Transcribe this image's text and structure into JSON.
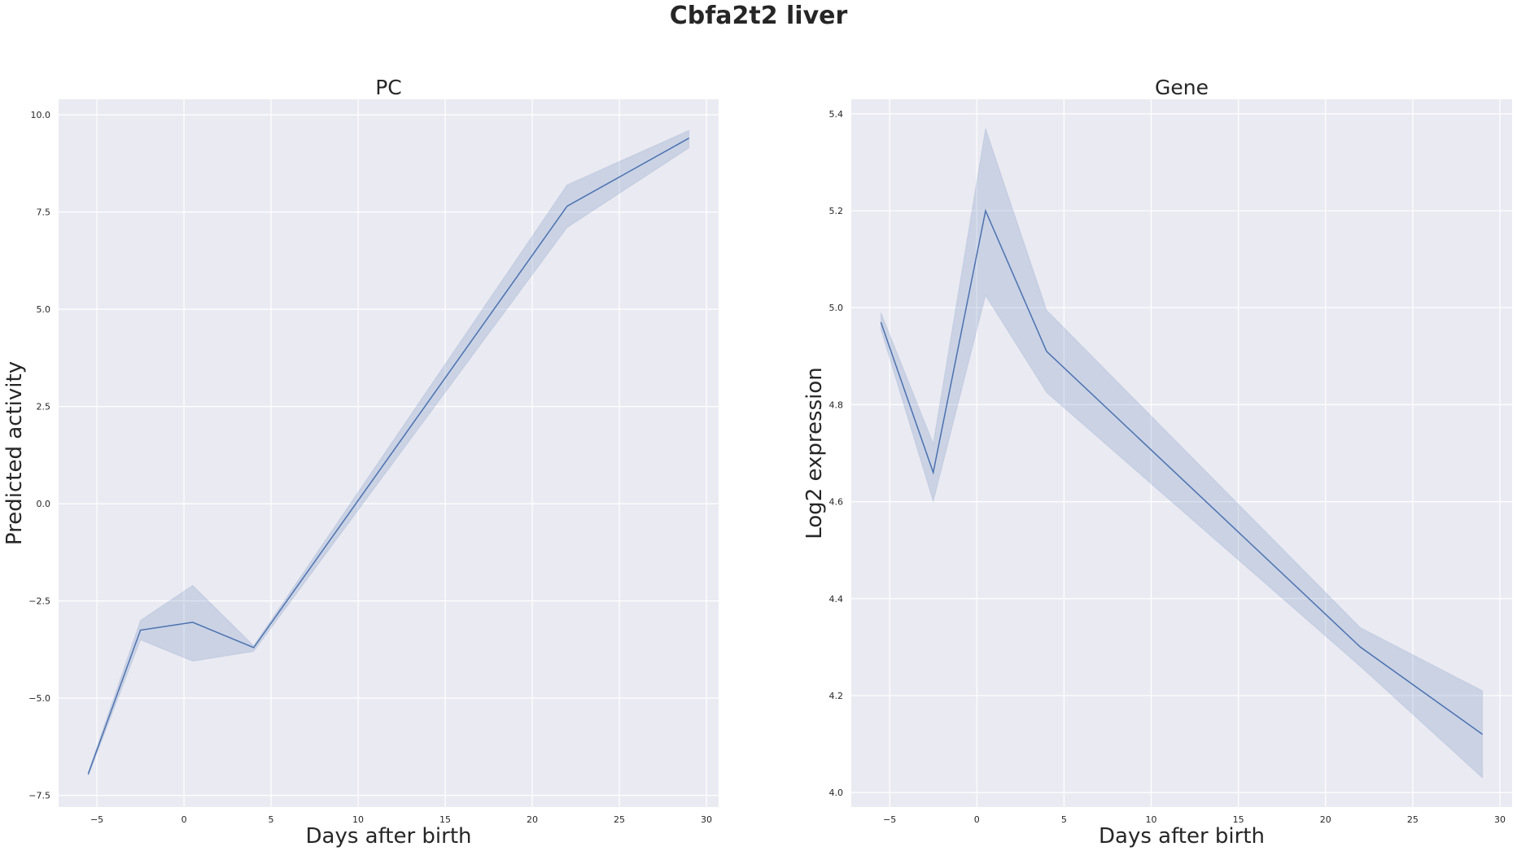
{
  "title": "Cbfa2t2 liver",
  "chart_data": [
    {
      "type": "line",
      "title": "PC",
      "xlabel": "Days after birth",
      "ylabel": "Predicted activity",
      "xlim": [
        -7.2,
        30.7
      ],
      "ylim": [
        -7.8,
        10.4
      ],
      "xticks": [
        -5,
        0,
        5,
        10,
        15,
        20,
        25,
        30
      ],
      "yticks": [
        -7.5,
        -5.0,
        -2.5,
        0.0,
        2.5,
        5.0,
        7.5,
        10.0
      ],
      "ytick_labels": [
        "−7.5",
        "−5.0",
        "−2.5",
        "0.0",
        "2.5",
        "5.0",
        "7.5",
        "10.0"
      ],
      "xtick_labels": [
        "−5",
        "0",
        "5",
        "10",
        "15",
        "20",
        "25",
        "30"
      ],
      "grid": true,
      "series": [
        {
          "x": [
            -5.5,
            -2.5,
            0.5,
            4,
            22,
            29
          ],
          "y": [
            -6.95,
            -3.25,
            -3.05,
            -3.7,
            7.65,
            9.4
          ],
          "ci_low": [
            -7.0,
            -3.5,
            -4.05,
            -3.8,
            7.1,
            9.15
          ],
          "ci_high": [
            -6.9,
            -3.0,
            -2.1,
            -3.65,
            8.2,
            9.6
          ],
          "color": "#4c72b0"
        }
      ]
    },
    {
      "type": "line",
      "title": "Gene",
      "xlabel": "Days after birth",
      "ylabel": "Log2 expression",
      "xlim": [
        -7.2,
        30.7
      ],
      "ylim": [
        3.97,
        5.43
      ],
      "xticks": [
        -5,
        0,
        5,
        10,
        15,
        20,
        25,
        30
      ],
      "yticks": [
        4.0,
        4.2,
        4.4,
        4.6,
        4.8,
        5.0,
        5.2,
        5.4
      ],
      "ytick_labels": [
        "4.0",
        "4.2",
        "4.4",
        "4.6",
        "4.8",
        "5.0",
        "5.2",
        "5.4"
      ],
      "xtick_labels": [
        "−5",
        "0",
        "5",
        "10",
        "15",
        "20",
        "25",
        "30"
      ],
      "grid": true,
      "series": [
        {
          "x": [
            -5.5,
            -2.5,
            0.5,
            4,
            22,
            29
          ],
          "y": [
            4.97,
            4.66,
            5.2,
            4.91,
            4.3,
            4.12
          ],
          "ci_low": [
            4.955,
            4.6,
            5.025,
            4.825,
            4.26,
            4.03
          ],
          "ci_high": [
            4.99,
            4.72,
            5.37,
            4.995,
            4.34,
            4.21
          ],
          "color": "#4c72b0"
        }
      ]
    }
  ]
}
